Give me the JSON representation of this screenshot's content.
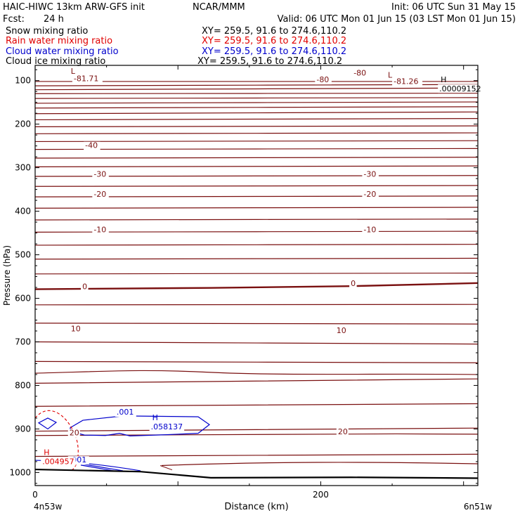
{
  "header": {
    "title": "HAIC-HIWC 13km ARW-GFS init",
    "org": "NCAR/MMM",
    "init": "Init: 06 UTC Sun 31 May 15",
    "fcst_label": "Fcst:",
    "fcst_value": "24 h",
    "valid": "Valid: 06 UTC Mon 01 Jun 15 (03 LST Mon 01 Jun 15)"
  },
  "fields": [
    {
      "name": "Snow mixing ratio",
      "xy": "XY= 259.5, 91.6 to 274.6,110.2",
      "color": "#000000"
    },
    {
      "name": "Rain water mixing ratio",
      "xy": "XY= 259.5, 91.6 to 274.6,110.2",
      "color": "#e00000"
    },
    {
      "name": "Cloud water mixing ratio",
      "xy": "XY= 259.5, 91.6 to 274.6,110.2",
      "color": "#0000cc"
    },
    {
      "name": "Cloud ice mixing ratio",
      "xy": "XY= 259.5, 91.6 to 274.6,110.2",
      "color": "#000000"
    }
  ],
  "chart_data": {
    "type": "contour cross-section",
    "ylabel": "Pressure (hPa)",
    "xlabel": "Distance (km)",
    "y_ticks": [
      100,
      200,
      300,
      400,
      500,
      600,
      700,
      800,
      900,
      1000
    ],
    "x_ticks": [
      0,
      200
    ],
    "x_left_label": "4n53w",
    "x_right_label": "6n51w",
    "xlim": [
      0,
      310
    ],
    "ylim": [
      1030,
      65
    ],
    "temperature_color": "#7a1010",
    "contour_labels": [
      {
        "text": "-81.71",
        "x": 27,
        "p": 101
      },
      {
        "text": "-80",
        "x": 197,
        "p": 104
      },
      {
        "text": "-80",
        "x": 223,
        "p": 88
      },
      {
        "text": "-81.26",
        "x": 251,
        "p": 108
      },
      {
        "text": "-40",
        "x": 35,
        "p": 255
      },
      {
        "text": "-30",
        "x": 41,
        "p": 321
      },
      {
        "text": "-30",
        "x": 230,
        "p": 321
      },
      {
        "text": "-20",
        "x": 41,
        "p": 367
      },
      {
        "text": "-20",
        "x": 230,
        "p": 367
      },
      {
        "text": "-10",
        "x": 41,
        "p": 448
      },
      {
        "text": "-10",
        "x": 230,
        "p": 448
      },
      {
        "text": "0",
        "x": 33,
        "p": 579
      },
      {
        "text": "0",
        "x": 221,
        "p": 572
      },
      {
        "text": "10",
        "x": 25,
        "p": 676
      },
      {
        "text": "10",
        "x": 211,
        "p": 680
      },
      {
        "text": "20",
        "x": 24,
        "p": 915
      },
      {
        "text": "20",
        "x": 212,
        "p": 912
      },
      {
        "text": ".001",
        "x": 57,
        "p": 867,
        "color": "#0000cc"
      },
      {
        "text": ".001",
        "x": 24,
        "p": 977,
        "color": "#0000cc"
      }
    ],
    "extrema": [
      {
        "symbol": "L",
        "value": "",
        "x": 25,
        "p": 84,
        "color": "#7a1010"
      },
      {
        "symbol": "L",
        "value": "",
        "x": 247,
        "p": 93,
        "color": "#7a1010"
      },
      {
        "symbol": "H",
        "value": ".00009152",
        "x": 284,
        "p": 104,
        "color": "#000000"
      },
      {
        "symbol": "H",
        "value": ".058137",
        "x": 82,
        "p": 880,
        "color": "#0000cc"
      },
      {
        "symbol": "H",
        "value": ".004957",
        "x": 6,
        "p": 960,
        "color": "#e00000"
      }
    ]
  }
}
